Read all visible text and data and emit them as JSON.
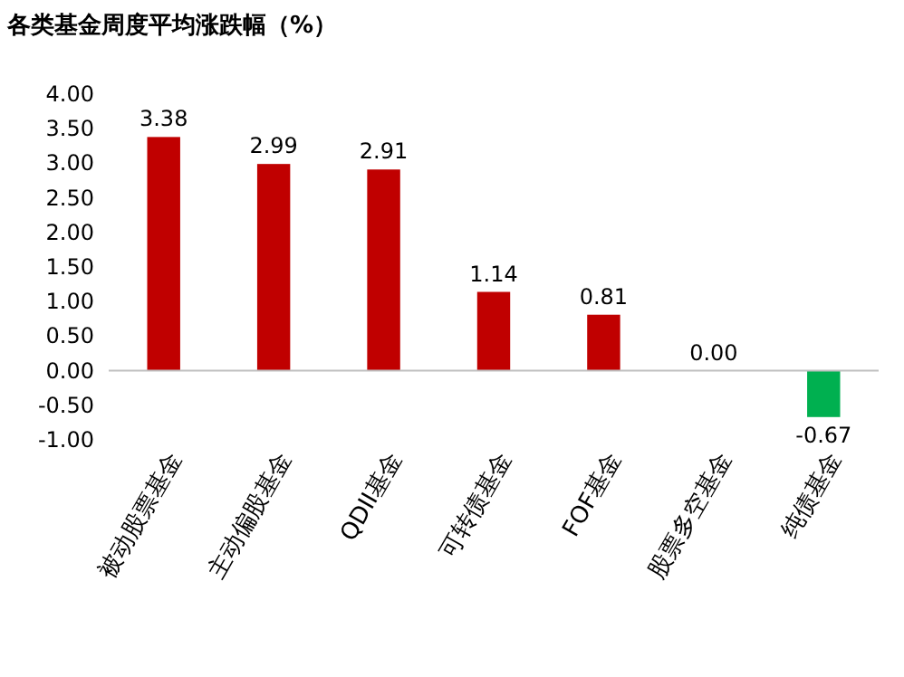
{
  "chart_data": {
    "type": "bar",
    "title": "各类基金周度平均涨跌幅（%）",
    "categories": [
      "被动股票基金",
      "主动偏股基金",
      "QDII基金",
      "可转债基金",
      "FOF基金",
      "股票多空基金",
      "纯债基金"
    ],
    "values": [
      3.38,
      2.99,
      2.91,
      1.14,
      0.81,
      0.0,
      -0.67
    ],
    "colors": [
      "#c00000",
      "#c00000",
      "#c00000",
      "#c00000",
      "#c00000",
      "#c00000",
      "#00b050"
    ],
    "value_labels": [
      "3.38",
      "2.99",
      "2.91",
      "1.14",
      "0.81",
      "0.00",
      "-0.67"
    ],
    "ylim": [
      -1,
      4
    ],
    "yticks": [
      {
        "value": 4,
        "label": "4.00"
      },
      {
        "value": 3.5,
        "label": "3.50"
      },
      {
        "value": 3,
        "label": "3.00"
      },
      {
        "value": 2.5,
        "label": "2.50"
      },
      {
        "value": 2,
        "label": "2.00"
      },
      {
        "value": 1.5,
        "label": "1.50"
      },
      {
        "value": 1,
        "label": "1.00"
      },
      {
        "value": 0.5,
        "label": "0.50"
      },
      {
        "value": 0,
        "label": "0.00"
      },
      {
        "value": -0.5,
        "label": "-0.50"
      },
      {
        "value": -1,
        "label": "-1.00"
      }
    ]
  }
}
